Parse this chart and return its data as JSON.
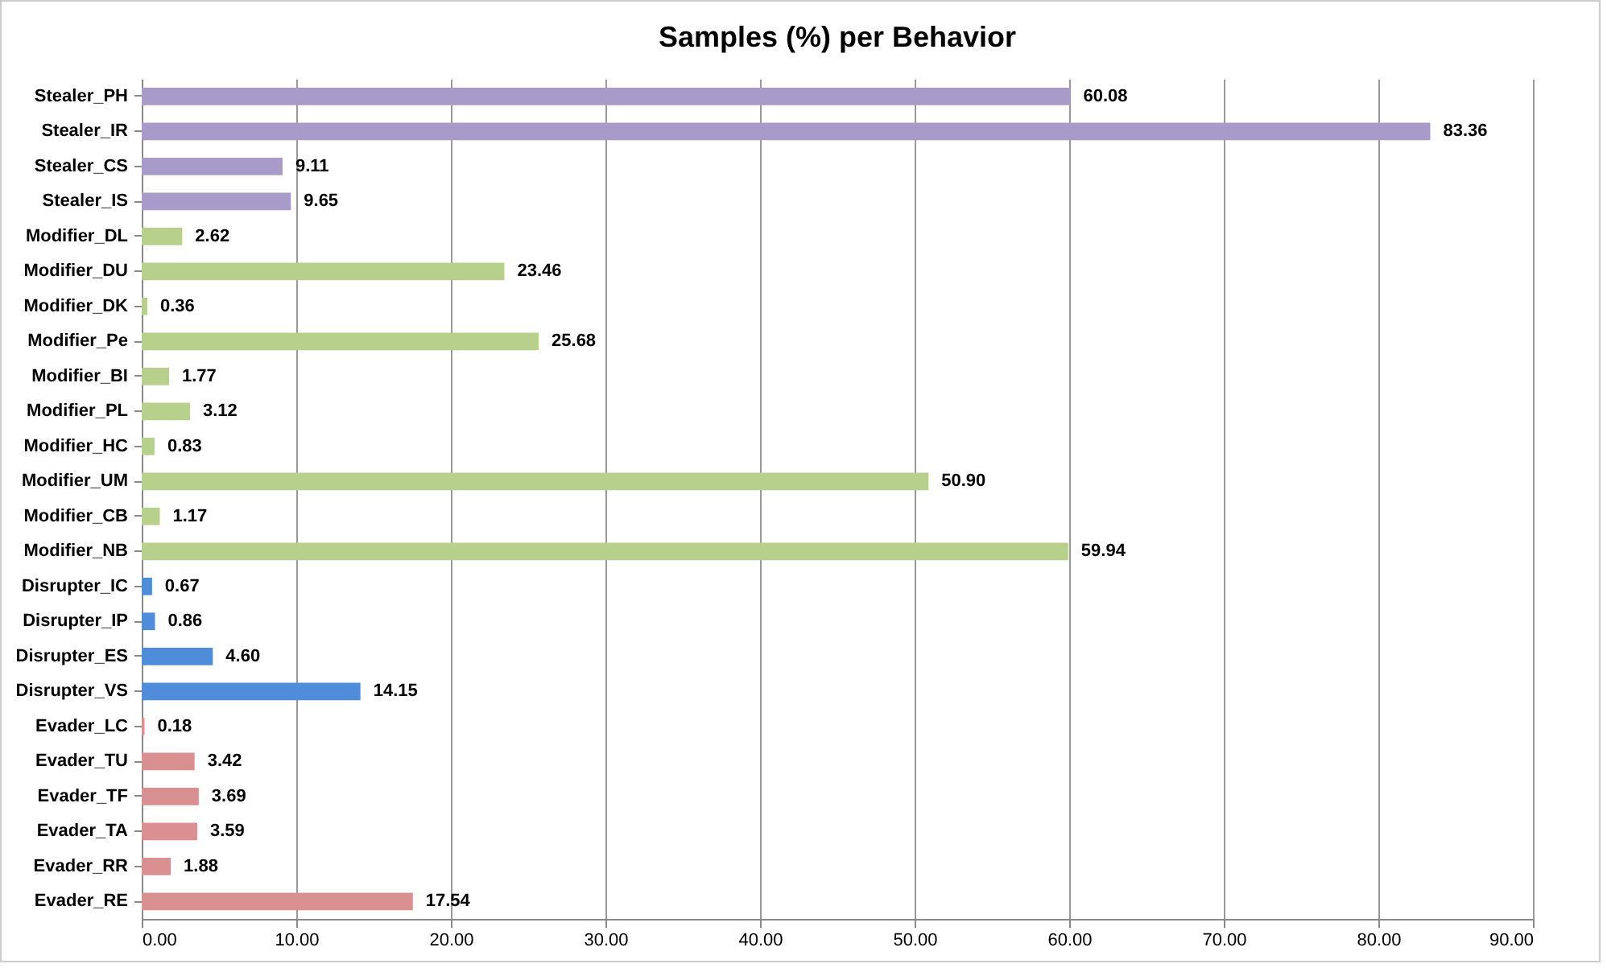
{
  "chart_data": {
    "type": "bar",
    "orientation": "horizontal",
    "title": "Samples (%) per Behavior",
    "categories": [
      "Stealer_PH",
      "Stealer_IR",
      "Stealer_CS",
      "Stealer_IS",
      "Modifier_DL",
      "Modifier_DU",
      "Modifier_DK",
      "Modifier_Pe",
      "Modifier_BI",
      "Modifier_PL",
      "Modifier_HC",
      "Modifier_UM",
      "Modifier_CB",
      "Modifier_NB",
      "Disrupter_IC",
      "Disrupter_IP",
      "Disrupter_ES",
      "Disrupter_VS",
      "Evader_LC",
      "Evader_TU",
      "Evader_TF",
      "Evader_TA",
      "Evader_RR",
      "Evader_RE"
    ],
    "values": [
      60.08,
      83.36,
      9.11,
      9.65,
      2.62,
      23.46,
      0.36,
      25.68,
      1.77,
      3.12,
      0.83,
      50.9,
      1.17,
      59.94,
      0.67,
      0.86,
      4.6,
      14.15,
      0.18,
      3.42,
      3.69,
      3.59,
      1.88,
      17.54
    ],
    "value_labels": [
      "60.08",
      "83.36",
      "9.11",
      "9.65",
      "2.62",
      "23.46",
      "0.36",
      "25.68",
      "1.77",
      "3.12",
      "0.83",
      "50.90",
      "1.17",
      "59.94",
      "0.67",
      "0.86",
      "4.60",
      "14.15",
      "0.18",
      "3.42",
      "3.69",
      "3.59",
      "1.88",
      "17.54"
    ],
    "colors": [
      "#a99bc9",
      "#a99bc9",
      "#a99bc9",
      "#a99bc9",
      "#b7d08c",
      "#b7d08c",
      "#b7d08c",
      "#b7d08c",
      "#b7d08c",
      "#b7d08c",
      "#b7d08c",
      "#b7d08c",
      "#b7d08c",
      "#b7d08c",
      "#4f8ddb",
      "#4f8ddb",
      "#4f8ddb",
      "#4f8ddb",
      "#da9090",
      "#da9090",
      "#da9090",
      "#da9090",
      "#da9090",
      "#da9090"
    ],
    "xlim": [
      0,
      90
    ],
    "xticks": [
      {
        "value": 0,
        "label": "0.00"
      },
      {
        "value": 10,
        "label": "10.00"
      },
      {
        "value": 20,
        "label": "20.00"
      },
      {
        "value": 30,
        "label": "30.00"
      },
      {
        "value": 40,
        "label": "40.00"
      },
      {
        "value": 50,
        "label": "50.00"
      },
      {
        "value": 60,
        "label": "60.00"
      },
      {
        "value": 70,
        "label": "70.00"
      },
      {
        "value": 80,
        "label": "80.00"
      },
      {
        "value": 90,
        "label": "90.00"
      }
    ],
    "grid": "x"
  }
}
